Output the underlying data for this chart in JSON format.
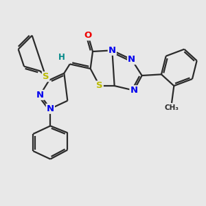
{
  "bg_color": "#e8e8e8",
  "bond_color": "#2a2a2a",
  "bond_width": 1.6,
  "N_color": "#0000ee",
  "O_color": "#ee0000",
  "S_color": "#bbbb00",
  "H_color": "#008888",
  "figsize": [
    3.0,
    3.0
  ],
  "dpi": 100,
  "xlim": [
    0,
    10
  ],
  "ylim": [
    0,
    10
  ]
}
